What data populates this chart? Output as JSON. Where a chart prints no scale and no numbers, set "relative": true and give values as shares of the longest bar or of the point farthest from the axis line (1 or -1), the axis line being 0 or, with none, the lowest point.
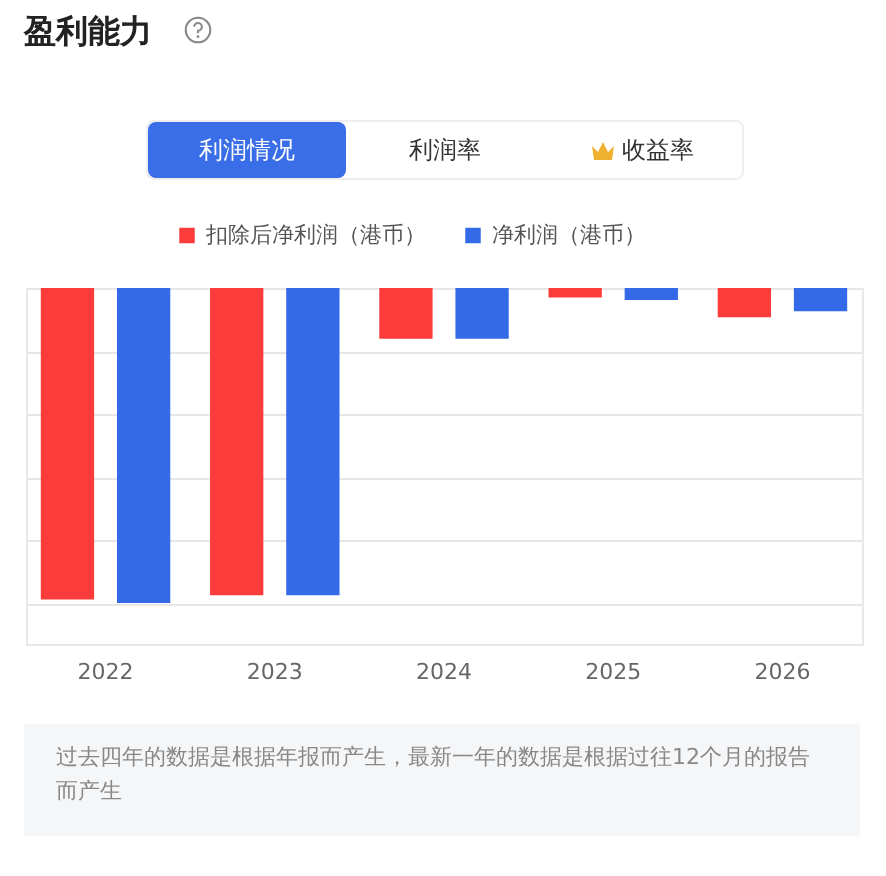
{
  "chart_data": {
    "type": "bar",
    "title": "盈利能力",
    "relative": true,
    "grid": "y",
    "legend": "top",
    "categories": [
      "2022",
      "2023",
      "2024",
      "2025",
      "2026"
    ],
    "series": [
      {
        "name": "扣除后净利润（港币）",
        "color": "#fc3b3b",
        "values": [
          -0.989,
          -0.975,
          -0.161,
          -0.03,
          -0.093
        ]
      },
      {
        "name": "净利润（港币）",
        "color": "#346ae8",
        "values": [
          -1,
          -0.975,
          -0.161,
          -0.038,
          -0.074
        ]
      }
    ],
    "annotations": [
      "利润情况",
      "利润率",
      "收益率",
      "过去四年的数据是根据年报而产生，最新一年的数据是根据过往12个月的报告而产生"
    ]
  }
}
